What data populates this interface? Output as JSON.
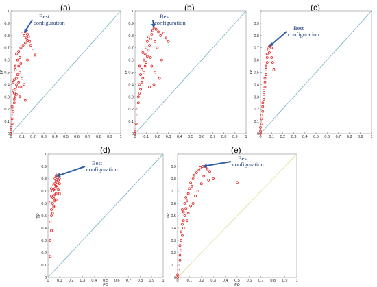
{
  "chart_data": [
    {
      "type": "scatter",
      "panel_label": "(a)",
      "xlabel": "FP",
      "ylabel": "TP",
      "xlim": [
        0,
        1
      ],
      "ylim": [
        0,
        1
      ],
      "xticks": [
        "0",
        "0.1",
        "0.2",
        "0.3",
        "0.4",
        "0.5",
        "0.6",
        "0.7",
        "0.8",
        "0.9",
        "1"
      ],
      "yticks": [
        "0",
        "0.1",
        "0.2",
        "0.3",
        "0.4",
        "0.5",
        "0.6",
        "0.7",
        "0.8",
        "0.9",
        "1"
      ],
      "annotation": {
        "text": [
          "Best",
          "configuration"
        ],
        "x": 0.12,
        "y": 0.82
      },
      "diagonal_color": "#7eb6c7",
      "marker_color": "#e02020",
      "points": [
        [
          0,
          0
        ],
        [
          0,
          0.02
        ],
        [
          0,
          0.05
        ],
        [
          0.01,
          0.08
        ],
        [
          0.01,
          0.12
        ],
        [
          0.02,
          0.15
        ],
        [
          0.02,
          0.18
        ],
        [
          0.02,
          0.2
        ],
        [
          0.01,
          0.22
        ],
        [
          0.03,
          0.25
        ],
        [
          0.03,
          0.28
        ],
        [
          0.04,
          0.3
        ],
        [
          0.05,
          0.32
        ],
        [
          0.03,
          0.33
        ],
        [
          0.02,
          0.35
        ],
        [
          0.04,
          0.36
        ],
        [
          0.06,
          0.38
        ],
        [
          0.05,
          0.4
        ],
        [
          0.07,
          0.42
        ],
        [
          0.03,
          0.44
        ],
        [
          0.05,
          0.45
        ],
        [
          0.06,
          0.48
        ],
        [
          0.08,
          0.5
        ],
        [
          0.04,
          0.52
        ],
        [
          0.07,
          0.55
        ],
        [
          0.09,
          0.57
        ],
        [
          0.06,
          0.6
        ],
        [
          0.08,
          0.62
        ],
        [
          0.05,
          0.65
        ],
        [
          0.07,
          0.67
        ],
        [
          0.09,
          0.7
        ],
        [
          0.11,
          0.72
        ],
        [
          0.13,
          0.74
        ],
        [
          0.15,
          0.76
        ],
        [
          0.17,
          0.75
        ],
        [
          0.14,
          0.78
        ],
        [
          0.12,
          0.8
        ],
        [
          0.1,
          0.82
        ],
        [
          0.13,
          0.83
        ],
        [
          0.15,
          0.81
        ],
        [
          0.16,
          0.79
        ],
        [
          0.18,
          0.72
        ],
        [
          0.2,
          0.68
        ],
        [
          0.22,
          0.64
        ],
        [
          0.15,
          0.6
        ],
        [
          0.1,
          0.45
        ],
        [
          0.09,
          0.38
        ],
        [
          0.13,
          0.27
        ],
        [
          0.02,
          0.42
        ],
        [
          0.04,
          0.55
        ],
        [
          0.12,
          0.4
        ],
        [
          0.08,
          0.3
        ]
      ]
    },
    {
      "type": "scatter",
      "panel_label": "(b)",
      "xlabel": "FP",
      "ylabel": "TP",
      "xlim": [
        0,
        1
      ],
      "ylim": [
        0,
        1
      ],
      "xticks": [
        "0",
        "0.1",
        "0.2",
        "0.3",
        "0.4",
        "0.5",
        "0.6",
        "0.7",
        "0.8",
        "0.9",
        "1"
      ],
      "yticks": [
        "0",
        "0.1",
        "0.2",
        "0.3",
        "0.4",
        "0.5",
        "0.6",
        "0.7",
        "0.8",
        "0.9",
        "1"
      ],
      "annotation": {
        "text": [
          "Best",
          "configuration"
        ],
        "x": 0.17,
        "y": 0.86
      },
      "diagonal_color": "#7eb6c7",
      "marker_color": "#e02020",
      "points": [
        [
          0,
          0
        ],
        [
          0,
          0.03
        ],
        [
          0.01,
          0.08
        ],
        [
          0.02,
          0.15
        ],
        [
          0.02,
          0.2
        ],
        [
          0.03,
          0.25
        ],
        [
          0.03,
          0.3
        ],
        [
          0.04,
          0.33
        ],
        [
          0.05,
          0.36
        ],
        [
          0.04,
          0.4
        ],
        [
          0.06,
          0.42
        ],
        [
          0.07,
          0.45
        ],
        [
          0.05,
          0.48
        ],
        [
          0.08,
          0.5
        ],
        [
          0.06,
          0.52
        ],
        [
          0.09,
          0.55
        ],
        [
          0.1,
          0.58
        ],
        [
          0.08,
          0.6
        ],
        [
          0.11,
          0.63
        ],
        [
          0.09,
          0.65
        ],
        [
          0.12,
          0.68
        ],
        [
          0.1,
          0.7
        ],
        [
          0.13,
          0.72
        ],
        [
          0.11,
          0.75
        ],
        [
          0.14,
          0.77
        ],
        [
          0.12,
          0.79
        ],
        [
          0.15,
          0.81
        ],
        [
          0.16,
          0.84
        ],
        [
          0.17,
          0.86
        ],
        [
          0.19,
          0.85
        ],
        [
          0.21,
          0.83
        ],
        [
          0.23,
          0.8
        ],
        [
          0.26,
          0.82
        ],
        [
          0.28,
          0.78
        ],
        [
          0.18,
          0.75
        ],
        [
          0.2,
          0.7
        ],
        [
          0.24,
          0.6
        ],
        [
          0.15,
          0.55
        ],
        [
          0.18,
          0.5
        ],
        [
          0.22,
          0.45
        ],
        [
          0.17,
          0.4
        ],
        [
          0.13,
          0.38
        ],
        [
          0.3,
          0.75
        ],
        [
          0.14,
          0.62
        ],
        [
          0.07,
          0.66
        ],
        [
          0.04,
          0.55
        ]
      ]
    },
    {
      "type": "scatter",
      "panel_label": "(c)",
      "xlabel": "FP",
      "ylabel": "TP",
      "xlim": [
        0,
        1
      ],
      "ylim": [
        0,
        1
      ],
      "xticks": [
        "0",
        "0.1",
        "0.2",
        "0.3",
        "0.4",
        "0.5",
        "0.6",
        "0.7",
        "0.8",
        "0.9",
        "1"
      ],
      "yticks": [
        "0",
        "0.1",
        "0.2",
        "0.3",
        "0.4",
        "0.5",
        "0.6",
        "0.7",
        "0.8",
        "0.9",
        "1"
      ],
      "annotation": {
        "text": [
          "Best",
          "configuration"
        ],
        "x": 0.08,
        "y": 0.71
      },
      "diagonal_color": "#7eb6c7",
      "marker_color": "#e02020",
      "points": [
        [
          0,
          0
        ],
        [
          0,
          0.02
        ],
        [
          0,
          0.05
        ],
        [
          0.01,
          0.08
        ],
        [
          0.01,
          0.12
        ],
        [
          0.01,
          0.15
        ],
        [
          0.02,
          0.18
        ],
        [
          0.02,
          0.22
        ],
        [
          0.02,
          0.25
        ],
        [
          0.03,
          0.28
        ],
        [
          0.03,
          0.32
        ],
        [
          0.03,
          0.35
        ],
        [
          0.04,
          0.38
        ],
        [
          0.04,
          0.42
        ],
        [
          0.04,
          0.45
        ],
        [
          0.05,
          0.48
        ],
        [
          0.05,
          0.52
        ],
        [
          0.05,
          0.55
        ],
        [
          0.06,
          0.58
        ],
        [
          0.06,
          0.62
        ],
        [
          0.06,
          0.65
        ],
        [
          0.07,
          0.68
        ],
        [
          0.07,
          0.7
        ],
        [
          0.08,
          0.71
        ],
        [
          0.09,
          0.72
        ],
        [
          0.1,
          0.7
        ],
        [
          0.08,
          0.66
        ],
        [
          0.1,
          0.62
        ],
        [
          0.11,
          0.58
        ],
        [
          0.12,
          0.52
        ]
      ]
    },
    {
      "type": "scatter",
      "panel_label": "(d)",
      "xlabel": "FP",
      "ylabel": "TP",
      "xlim": [
        0,
        1
      ],
      "ylim": [
        0,
        1
      ],
      "xticks": [
        "0",
        "0.1",
        "0.2",
        "0.3",
        "0.4",
        "0.5",
        "0.6",
        "0.7",
        "0.8",
        "0.9",
        "1"
      ],
      "yticks": [
        "0",
        "0.1",
        "0.2",
        "0.3",
        "0.4",
        "0.5",
        "0.6",
        "0.7",
        "0.8",
        "0.9",
        "1"
      ],
      "annotation": {
        "text": [
          "Best",
          "configuration"
        ],
        "x": 0.07,
        "y": 0.82
      },
      "diagonal_color": "#7eb6c7",
      "marker_color": "#e02020",
      "points": [
        [
          0.02,
          0.17
        ],
        [
          0.02,
          0.3
        ],
        [
          0.03,
          0.38
        ],
        [
          0.02,
          0.45
        ],
        [
          0.03,
          0.5
        ],
        [
          0.04,
          0.52
        ],
        [
          0.03,
          0.55
        ],
        [
          0.05,
          0.57
        ],
        [
          0.04,
          0.6
        ],
        [
          0.06,
          0.62
        ],
        [
          0.05,
          0.64
        ],
        [
          0.03,
          0.66
        ],
        [
          0.06,
          0.67
        ],
        [
          0.07,
          0.68
        ],
        [
          0.04,
          0.7
        ],
        [
          0.05,
          0.71
        ],
        [
          0.06,
          0.72
        ],
        [
          0.08,
          0.73
        ],
        [
          0.07,
          0.74
        ],
        [
          0.05,
          0.75
        ],
        [
          0.06,
          0.76
        ],
        [
          0.08,
          0.77
        ],
        [
          0.07,
          0.78
        ],
        [
          0.09,
          0.79
        ],
        [
          0.06,
          0.8
        ],
        [
          0.08,
          0.81
        ],
        [
          0.07,
          0.82
        ],
        [
          0.09,
          0.83
        ],
        [
          0.08,
          0.84
        ],
        [
          0.1,
          0.8
        ],
        [
          0.1,
          0.76
        ],
        [
          0.09,
          0.71
        ],
        [
          0.04,
          0.65
        ],
        [
          0.05,
          0.58
        ],
        [
          0.07,
          0.63
        ],
        [
          0.02,
          0.61
        ],
        [
          0.03,
          0.72
        ],
        [
          0.1,
          0.68
        ]
      ]
    },
    {
      "type": "scatter",
      "panel_label": "(e)",
      "xlabel": "FP",
      "ylabel": "TP",
      "xlim": [
        0,
        1
      ],
      "ylim": [
        0,
        1
      ],
      "xticks": [
        "0",
        "0.1",
        "0.2",
        "0.3",
        "0.4",
        "0.5",
        "0.6",
        "0.7",
        "0.8",
        "0.9",
        "1"
      ],
      "yticks": [
        "0",
        "0.1",
        "0.2",
        "0.3",
        "0.4",
        "0.5",
        "0.6",
        "0.7",
        "0.8",
        "0.9",
        "1"
      ],
      "annotation": {
        "text": [
          "Best",
          "configuration"
        ],
        "x": 0.21,
        "y": 0.9
      },
      "diagonal_color": "#e0dca0",
      "marker_color": "#e02020",
      "points": [
        [
          0,
          0
        ],
        [
          0,
          0.02
        ],
        [
          0.01,
          0.06
        ],
        [
          0.01,
          0.1
        ],
        [
          0.02,
          0.14
        ],
        [
          0.02,
          0.18
        ],
        [
          0.03,
          0.22
        ],
        [
          0.02,
          0.26
        ],
        [
          0.03,
          0.3
        ],
        [
          0.04,
          0.34
        ],
        [
          0.03,
          0.37
        ],
        [
          0.05,
          0.4
        ],
        [
          0.04,
          0.43
        ],
        [
          0.05,
          0.46
        ],
        [
          0.06,
          0.5
        ],
        [
          0.05,
          0.53
        ],
        [
          0.07,
          0.56
        ],
        [
          0.06,
          0.6
        ],
        [
          0.08,
          0.62
        ],
        [
          0.07,
          0.65
        ],
        [
          0.09,
          0.68
        ],
        [
          0.1,
          0.72
        ],
        [
          0.12,
          0.74
        ],
        [
          0.11,
          0.77
        ],
        [
          0.13,
          0.8
        ],
        [
          0.14,
          0.83
        ],
        [
          0.16,
          0.85
        ],
        [
          0.18,
          0.87
        ],
        [
          0.19,
          0.89
        ],
        [
          0.21,
          0.9
        ],
        [
          0.23,
          0.9
        ],
        [
          0.25,
          0.88
        ],
        [
          0.27,
          0.86
        ],
        [
          0.22,
          0.82
        ],
        [
          0.26,
          0.79
        ],
        [
          0.3,
          0.8
        ],
        [
          0.2,
          0.76
        ],
        [
          0.17,
          0.7
        ],
        [
          0.15,
          0.66
        ],
        [
          0.5,
          0.77
        ],
        [
          0.09,
          0.52
        ],
        [
          0.04,
          0.55
        ],
        [
          0.11,
          0.58
        ],
        [
          0.13,
          0.6
        ],
        [
          0.08,
          0.46
        ]
      ]
    }
  ]
}
